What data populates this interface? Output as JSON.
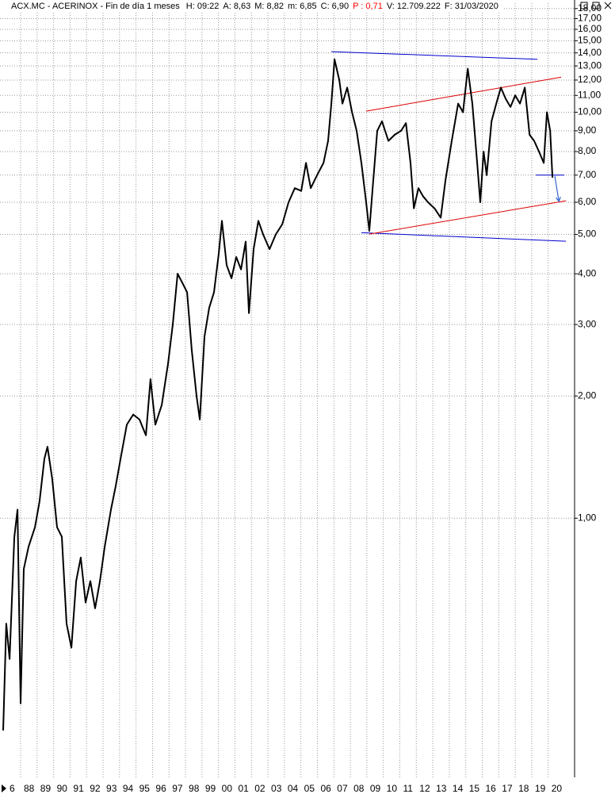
{
  "header": {
    "title": "ACX.MC - ACERINOX - Fin de día 1 meses",
    "fields": [
      {
        "text": "H: 09:22",
        "color": "#000000"
      },
      {
        "text": "A: 8,63",
        "color": "#000000"
      },
      {
        "text": "M: 8,82",
        "color": "#000000"
      },
      {
        "text": "m: 6,85",
        "color": "#000000"
      },
      {
        "text": "C: 6,90",
        "color": "#000000"
      },
      {
        "text": "P : 0,71",
        "color": "#ff0000"
      },
      {
        "text": "V: 12.709.222",
        "color": "#000000"
      },
      {
        "text": "F: 31/03/2020",
        "color": "#000000"
      }
    ]
  },
  "chart_data": {
    "type": "line",
    "log_y": true,
    "grid": true,
    "xlim": [
      1986.75,
      2021.6
    ],
    "ylim": [
      0.23,
      18.56
    ],
    "xticks": [
      {
        "value": 1986,
        "label": "6"
      },
      {
        "value": 1988,
        "label": "88"
      },
      {
        "value": 1989,
        "label": "89"
      },
      {
        "value": 1990,
        "label": "90"
      },
      {
        "value": 1991,
        "label": "91"
      },
      {
        "value": 1992,
        "label": "92"
      },
      {
        "value": 1993,
        "label": "93"
      },
      {
        "value": 1994,
        "label": "94"
      },
      {
        "value": 1995,
        "label": "95"
      },
      {
        "value": 1996,
        "label": "96"
      },
      {
        "value": 1997,
        "label": "97"
      },
      {
        "value": 1998,
        "label": "98"
      },
      {
        "value": 1999,
        "label": "99"
      },
      {
        "value": 2000,
        "label": "00"
      },
      {
        "value": 2001,
        "label": "01"
      },
      {
        "value": 2002,
        "label": "02"
      },
      {
        "value": 2003,
        "label": "03"
      },
      {
        "value": 2004,
        "label": "04"
      },
      {
        "value": 2005,
        "label": "05"
      },
      {
        "value": 2006,
        "label": "06"
      },
      {
        "value": 2007,
        "label": "07"
      },
      {
        "value": 2008,
        "label": "08"
      },
      {
        "value": 2009,
        "label": "09"
      },
      {
        "value": 2010,
        "label": "10"
      },
      {
        "value": 2011,
        "label": "11"
      },
      {
        "value": 2012,
        "label": "12"
      },
      {
        "value": 2013,
        "label": "13"
      },
      {
        "value": 2014,
        "label": "14"
      },
      {
        "value": 2015,
        "label": "15"
      },
      {
        "value": 2016,
        "label": "16"
      },
      {
        "value": 2017,
        "label": "17"
      },
      {
        "value": 2018,
        "label": "18"
      },
      {
        "value": 2019,
        "label": "19"
      },
      {
        "value": 2020,
        "label": "20"
      }
    ],
    "yticks": [
      {
        "value": 1,
        "label": "1,00"
      },
      {
        "value": 2,
        "label": "2,00"
      },
      {
        "value": 3,
        "label": "3,00"
      },
      {
        "value": 4,
        "label": "4,00"
      },
      {
        "value": 5,
        "label": "5,00"
      },
      {
        "value": 6,
        "label": "6,00"
      },
      {
        "value": 7,
        "label": "7,00"
      },
      {
        "value": 8,
        "label": "8,00"
      },
      {
        "value": 9,
        "label": "9,00"
      },
      {
        "value": 10,
        "label": "10,00"
      },
      {
        "value": 11,
        "label": "11,00"
      },
      {
        "value": 12,
        "label": "12,00"
      },
      {
        "value": 13,
        "label": "13,00"
      },
      {
        "value": 14,
        "label": "14,00"
      },
      {
        "value": 15,
        "label": "15,00"
      },
      {
        "value": 16,
        "label": "16,00"
      },
      {
        "value": 17,
        "label": "17,00"
      },
      {
        "value": 18,
        "label": "18,00"
      }
    ],
    "series": [
      {
        "color": "#000000",
        "x": [
          1986.94,
          1987.13,
          1987.33,
          1987.62,
          1987.81,
          1988.0,
          1988.19,
          1988.48,
          1988.87,
          1989.15,
          1989.44,
          1989.63,
          1989.92,
          1990.21,
          1990.5,
          1990.79,
          1991.08,
          1991.37,
          1991.65,
          1991.94,
          1992.23,
          1992.52,
          1992.81,
          1993.1,
          1993.48,
          1993.77,
          1994.06,
          1994.44,
          1994.83,
          1995.21,
          1995.6,
          1995.88,
          1996.17,
          1996.56,
          1996.94,
          1997.23,
          1997.52,
          1997.81,
          1998.1,
          1998.38,
          1998.67,
          1998.87,
          1999.15,
          1999.44,
          1999.73,
          2000.02,
          2000.21,
          2000.5,
          2000.79,
          2001.08,
          2001.37,
          2001.65,
          2001.85,
          2002.13,
          2002.42,
          2002.71,
          2003.1,
          2003.48,
          2003.87,
          2004.25,
          2004.63,
          2005.02,
          2005.31,
          2005.6,
          2005.98,
          2006.37,
          2006.65,
          2006.85,
          2007.04,
          2007.33,
          2007.52,
          2007.81,
          2008.1,
          2008.38,
          2008.67,
          2008.96,
          2009.15,
          2009.35,
          2009.63,
          2009.92,
          2010.31,
          2010.69,
          2011.08,
          2011.37,
          2011.65,
          2011.85,
          2012.13,
          2012.42,
          2012.71,
          2013.1,
          2013.48,
          2013.77,
          2014.15,
          2014.54,
          2014.83,
          2015.12,
          2015.4,
          2015.69,
          2015.88,
          2016.08,
          2016.27,
          2016.56,
          2016.85,
          2017.13,
          2017.42,
          2017.71,
          2018.0,
          2018.29,
          2018.58,
          2018.87,
          2019.15,
          2019.44,
          2019.73,
          2019.92,
          2020.12,
          2020.26
        ],
        "values": [
          0.3,
          0.55,
          0.45,
          0.9,
          1.05,
          0.35,
          0.75,
          0.85,
          0.95,
          1.1,
          1.4,
          1.5,
          1.25,
          0.95,
          0.9,
          0.55,
          0.48,
          0.7,
          0.8,
          0.62,
          0.7,
          0.6,
          0.7,
          0.85,
          1.05,
          1.2,
          1.4,
          1.7,
          1.8,
          1.75,
          1.6,
          2.2,
          1.7,
          1.9,
          2.4,
          3.0,
          4.0,
          3.8,
          3.6,
          2.6,
          2.0,
          1.75,
          2.8,
          3.3,
          3.6,
          4.5,
          5.4,
          4.2,
          3.9,
          4.4,
          4.1,
          4.8,
          3.2,
          4.6,
          5.4,
          5.0,
          4.6,
          5.0,
          5.3,
          6.0,
          6.5,
          6.4,
          7.5,
          6.5,
          7.0,
          7.5,
          8.5,
          10.5,
          13.5,
          12.0,
          10.5,
          11.5,
          10.0,
          9.0,
          7.5,
          6.0,
          5.1,
          6.5,
          9.0,
          9.5,
          8.5,
          8.8,
          9.0,
          9.4,
          7.5,
          5.8,
          6.5,
          6.2,
          6.0,
          5.8,
          5.5,
          6.8,
          8.5,
          10.5,
          10.0,
          12.8,
          10.5,
          7.5,
          6.0,
          8.0,
          7.0,
          9.5,
          10.5,
          11.5,
          10.8,
          10.3,
          11.0,
          10.5,
          11.5,
          8.8,
          8.5,
          8.0,
          7.5,
          10.0,
          9.0,
          6.9
        ]
      }
    ],
    "lines": [
      {
        "color": "#0000cc",
        "x": [
          2006.85,
          2019.35
        ],
        "y": [
          14.1,
          13.5
        ]
      },
      {
        "color": "#0000cc",
        "x": [
          2008.67,
          2021.08
        ],
        "y": [
          5.05,
          4.81
        ]
      },
      {
        "color": "#dd0000",
        "x": [
          2008.96,
          2020.79
        ],
        "y": [
          10.06,
          12.2
        ]
      },
      {
        "color": "#dd0000",
        "x": [
          2009.15,
          2021.08
        ],
        "y": [
          5.01,
          6.05
        ]
      },
      {
        "color": "#0000cc",
        "x": [
          2019.25,
          2020.98
        ],
        "y": [
          7.0,
          7.0
        ]
      }
    ],
    "arrows": [
      {
        "color": "#3366cc",
        "x": [
          2020.4,
          2020.65
        ],
        "y": [
          6.96,
          6.03
        ]
      }
    ]
  }
}
